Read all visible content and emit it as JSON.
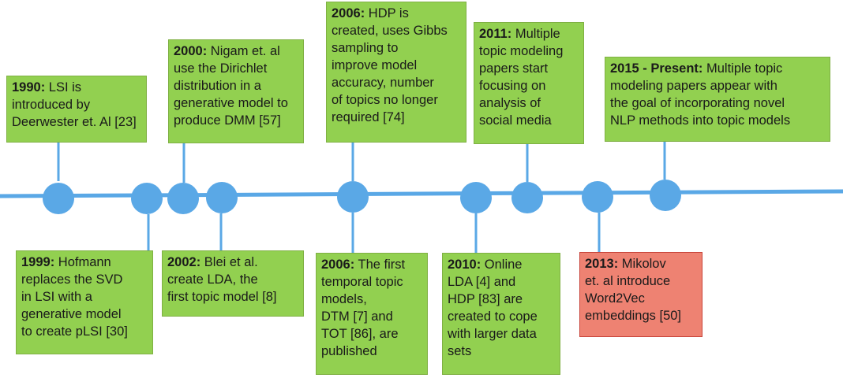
{
  "colors": {
    "box_green": "#92d050",
    "box_red": "#ee8272",
    "timeline_blue": "#5aa8e6"
  },
  "events": [
    {
      "id": "e1990",
      "side": "above",
      "color": "green",
      "year": "1990:",
      "lines": [
        " LSI is",
        "introduced by",
        "Deerwester et. Al [23]"
      ]
    },
    {
      "id": "e1999",
      "side": "below",
      "color": "green",
      "year": "1999:",
      "lines": [
        " Hofmann",
        "replaces the SVD",
        "in LSI with a",
        "generative model",
        "to create pLSI [30]"
      ]
    },
    {
      "id": "e2000",
      "side": "above",
      "color": "green",
      "year": "2000:",
      "lines": [
        " Nigam et. al",
        "use the Dirichlet",
        "distribution in a",
        "generative model to",
        "produce DMM [57]"
      ]
    },
    {
      "id": "e2002",
      "side": "below",
      "color": "green",
      "year": "2002:",
      "lines": [
        " Blei et al.",
        "create LDA, the",
        "first topic model [8]"
      ]
    },
    {
      "id": "e2006a",
      "side": "above",
      "color": "green",
      "year": "2006:",
      "lines": [
        " HDP is",
        "created, uses Gibbs",
        "sampling to",
        "improve model",
        "accuracy, number",
        "of topics no longer",
        "required [74]"
      ]
    },
    {
      "id": "e2006b",
      "side": "below",
      "color": "green",
      "year": "2006:",
      "lines": [
        " The first",
        "temporal topic",
        "models,",
        "DTM [7] and",
        "TOT [86], are",
        "published"
      ]
    },
    {
      "id": "e2010",
      "side": "below",
      "color": "green",
      "year": "2010:",
      "lines": [
        " Online",
        "LDA [4] and",
        "HDP [83] are",
        "created to cope",
        "with larger data",
        "sets"
      ]
    },
    {
      "id": "e2011",
      "side": "above",
      "color": "green",
      "year": "2011:",
      "lines": [
        " Multiple",
        "topic modeling",
        "papers start",
        "focusing on",
        "analysis of",
        "social media"
      ]
    },
    {
      "id": "e2013",
      "side": "below",
      "color": "red",
      "year": "2013:",
      "lines": [
        " Mikolov",
        "et. al introduce",
        "Word2Vec",
        "embeddings [50]"
      ]
    },
    {
      "id": "e2015",
      "side": "above",
      "color": "green",
      "year": "2015 - Present:",
      "lines": [
        " Multiple topic",
        "modeling papers appear with",
        "the goal of incorporating novel",
        "NLP methods into topic models"
      ]
    }
  ]
}
